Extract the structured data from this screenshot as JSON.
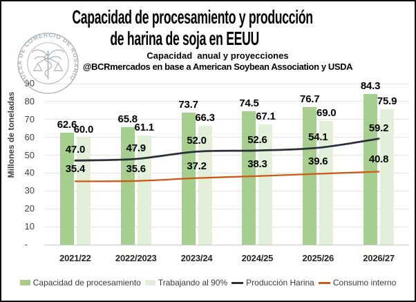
{
  "header": {
    "title_line1": "Capacidad de procesamiento y producción",
    "title_line2": "de harina de soja en EEUU",
    "subtitle": "Capacidad  anual y proyecciones",
    "source": "@BCRmercados en base a American Soybean Association y USDA"
  },
  "logo": {
    "text": "BOLSA DE COMERCIO DE ROSARIO"
  },
  "chart_data": {
    "type": "bar",
    "title": "Capacidad de procesamiento y producción de harina de soja en EEUU",
    "xlabel": "",
    "ylabel": "Millones de toneladas",
    "ylim": [
      0,
      90
    ],
    "grid": true,
    "legend_position": "bottom",
    "yticks": [
      {
        "value": 0,
        "label": "-"
      },
      {
        "value": 10,
        "label": "10"
      },
      {
        "value": 20,
        "label": "20"
      },
      {
        "value": 30,
        "label": "30"
      },
      {
        "value": 40,
        "label": "40"
      },
      {
        "value": 50,
        "label": "50"
      },
      {
        "value": 60,
        "label": "60"
      },
      {
        "value": 70,
        "label": "70"
      },
      {
        "value": 80,
        "label": "80"
      },
      {
        "value": 90,
        "label": "90"
      }
    ],
    "categories": [
      "2021/22",
      "2022/2023",
      "2023/24",
      "2024/25",
      "2025/26",
      "2026/27"
    ],
    "series": [
      {
        "name": "Capacidad de procesamiento",
        "type": "bar",
        "color": "#A6CE8E",
        "values": [
          62.6,
          65.8,
          73.7,
          74.5,
          76.7,
          84.3
        ]
      },
      {
        "name": "Trabajando al 90%",
        "type": "bar",
        "color": "#E2EFD9",
        "values": [
          60.0,
          61.1,
          66.3,
          67.1,
          69.0,
          75.9
        ]
      },
      {
        "name": "Producción Harina",
        "type": "line",
        "color": "#2A2E39",
        "values": [
          47.0,
          47.9,
          52.0,
          52.6,
          54.1,
          59.2
        ]
      },
      {
        "name": "Consumo interno",
        "type": "line",
        "color": "#CC5A12",
        "values": [
          35.4,
          35.6,
          37.2,
          38.3,
          39.6,
          40.8
        ]
      }
    ]
  }
}
